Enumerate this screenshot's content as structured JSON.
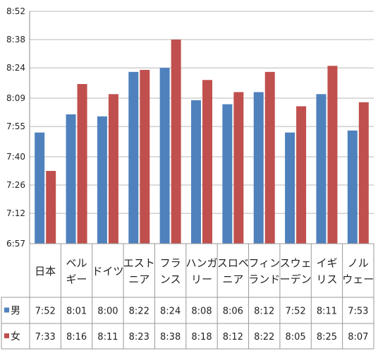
{
  "chart_data": {
    "type": "bar",
    "categories": [
      [
        "日本"
      ],
      [
        "ベル",
        "ギー"
      ],
      [
        "ドイツ"
      ],
      [
        "エスト",
        "ニア"
      ],
      [
        "フラ",
        "ンス"
      ],
      [
        "ハンガ",
        "リー"
      ],
      [
        "スロベ",
        "ニア"
      ],
      [
        "フィン",
        "ランド"
      ],
      [
        "スウェ",
        "ーデン"
      ],
      [
        "イギ",
        "リス"
      ],
      [
        "ノル",
        "ウェー"
      ]
    ],
    "series": [
      {
        "name": "男",
        "color": "#4f81bd",
        "values": [
          "7:52",
          "8:01",
          "8:00",
          "8:22",
          "8:24",
          "8:08",
          "8:06",
          "8:12",
          "7:52",
          "8:11",
          "7:53"
        ]
      },
      {
        "name": "女",
        "color": "#c0504d",
        "values": [
          "7:33",
          "8:16",
          "8:11",
          "8:23",
          "8:38",
          "8:18",
          "8:12",
          "8:22",
          "8:05",
          "8:25",
          "8:07"
        ]
      }
    ],
    "ytick_labels": [
      "6:57",
      "7:12",
      "7:26",
      "7:40",
      "7:55",
      "8:09",
      "8:24",
      "8:38",
      "8:52"
    ],
    "ylim": [
      "6:57",
      "8:52"
    ],
    "grid": true,
    "legend": "table-left"
  }
}
